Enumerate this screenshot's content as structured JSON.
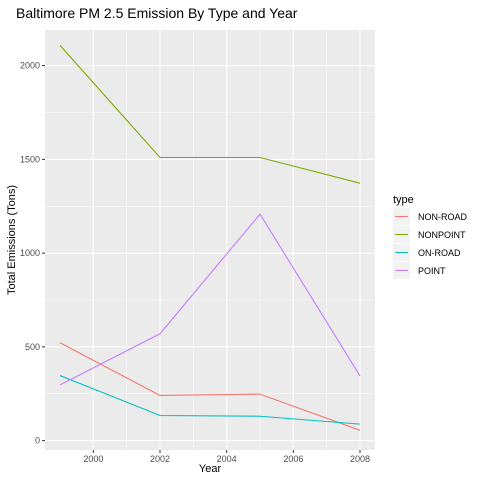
{
  "chart_data": {
    "type": "line",
    "title": "Baltimore PM 2.5 Emission By Type and Year",
    "xlabel": "Year",
    "ylabel": "Total Emissions (Tons)",
    "x": [
      1999,
      2002,
      2005,
      2008
    ],
    "x_ticks": [
      2000,
      2002,
      2004,
      2006,
      2008
    ],
    "y_ticks": [
      0,
      500,
      1000,
      1500,
      2000
    ],
    "xlim": [
      1998.55,
      2008.45
    ],
    "ylim": [
      -50,
      2190
    ],
    "grid": true,
    "legend_title": "type",
    "legend_position": "right",
    "series": [
      {
        "name": "NON-ROAD",
        "color": "#F8766D",
        "values": [
          522,
          241,
          248,
          55
        ]
      },
      {
        "name": "NONPOINT",
        "color": "#7CAE00",
        "values": [
          2108,
          1510,
          1510,
          1373
        ]
      },
      {
        "name": "ON-ROAD",
        "color": "#00BFC4",
        "values": [
          347,
          134,
          130,
          88
        ]
      },
      {
        "name": "POINT",
        "color": "#C77CFF",
        "values": [
          297,
          570,
          1208,
          345
        ]
      }
    ],
    "panel_color": "#EBEBEB",
    "grid_color": "#FFFFFF"
  }
}
